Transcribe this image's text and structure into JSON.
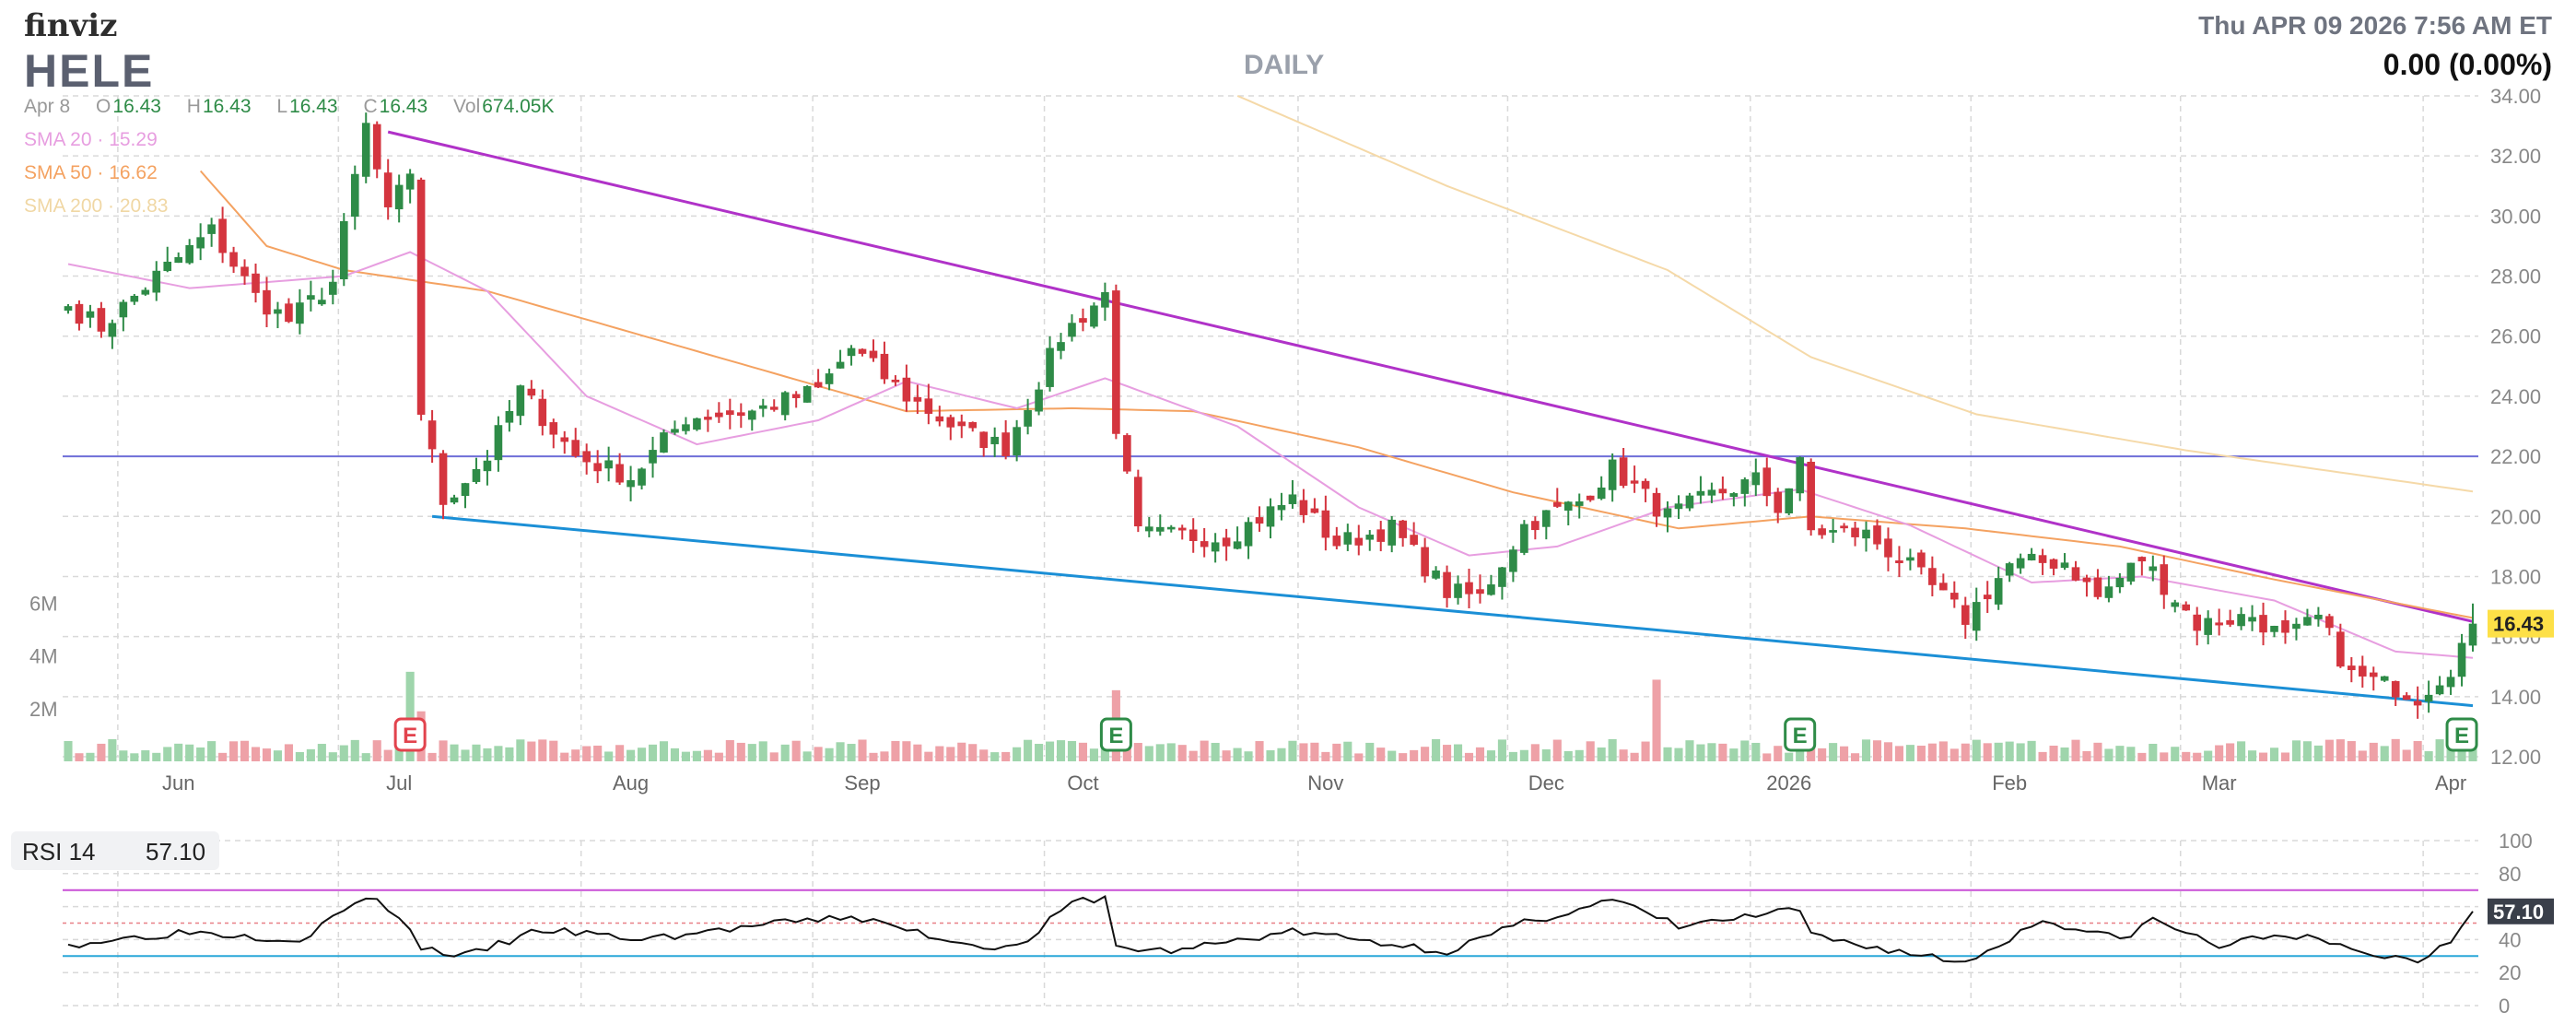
{
  "header": {
    "logo": "finviz",
    "ticker": "HELE",
    "timeframe": "DAILY",
    "datetime": "Thu APR 09 2026 7:56 AM ET",
    "change": "0.00 (0.00%)"
  },
  "ohlc": {
    "date": "Apr 8",
    "open_label": "O",
    "open": "16.43",
    "high_label": "H",
    "high": "16.43",
    "low_label": "L",
    "low": "16.43",
    "close_label": "C",
    "close": "16.43",
    "vol_label": "Vol",
    "vol": "674.05K"
  },
  "legend": {
    "sma20": "SMA 20 · 15.29",
    "sma50": "SMA 50 · 16.62",
    "sma200": "SMA 200 · 20.83"
  },
  "rsi_panel": {
    "label": "RSI 14",
    "value": "57.10"
  },
  "colors": {
    "up": "#2e8b47",
    "down": "#d4353f",
    "vol_up": "#9fd5ac",
    "vol_down": "#eea1a7",
    "sma20": "#e79ee0",
    "sma50": "#f4a261",
    "sma200": "#f5d9a8",
    "upper_trend": "#b032c8",
    "lower_trend": "#1b8fd6",
    "hline": "#6f6fd8",
    "price_badge": "#fde047",
    "earnings": "#2e8b47",
    "earnings_red": "#e2434d"
  },
  "chart_data": [
    {
      "type": "candlestick",
      "title": "HELE",
      "x_axis": {
        "tick_labels": [
          "Jun",
          "Jul",
          "Aug",
          "Sep",
          "Oct",
          "Nov",
          "Dec",
          "2026",
          "Feb",
          "Mar",
          "Apr"
        ],
        "range": [
          "2025-05-23",
          "2026-04-08"
        ]
      },
      "y_axis": {
        "tick_labels": [
          "34.00",
          "32.00",
          "30.00",
          "28.00",
          "26.00",
          "24.00",
          "22.00",
          "20.00",
          "18.00",
          "16.00",
          "14.00",
          "12.00"
        ],
        "ylim": [
          12,
          34
        ],
        "side": "right"
      },
      "last_price_label": "16.43",
      "anchors": [
        {
          "date": "2025-05-23",
          "close": 27.0
        },
        {
          "date": "2025-05-29",
          "close": 26.3
        },
        {
          "date": "2025-06-05",
          "close": 28.0
        },
        {
          "date": "2025-06-12",
          "close": 29.5
        },
        {
          "date": "2025-06-18",
          "close": 27.3
        },
        {
          "date": "2025-06-24",
          "close": 26.5
        },
        {
          "date": "2025-06-30",
          "close": 27.8
        },
        {
          "date": "2025-07-03",
          "close": 33.0
        },
        {
          "date": "2025-07-08",
          "close": 30.0
        },
        {
          "date": "2025-07-10",
          "close": 31.5
        },
        {
          "date": "2025-07-11",
          "close": 23.5
        },
        {
          "date": "2025-07-15",
          "close": 20.5
        },
        {
          "date": "2025-07-21",
          "close": 22.0
        },
        {
          "date": "2025-07-24",
          "close": 24.2
        },
        {
          "date": "2025-07-31",
          "close": 22.0
        },
        {
          "date": "2025-08-07",
          "close": 21.3
        },
        {
          "date": "2025-08-14",
          "close": 23.3
        },
        {
          "date": "2025-08-22",
          "close": 23.5
        },
        {
          "date": "2025-09-02",
          "close": 24.2
        },
        {
          "date": "2025-09-05",
          "close": 25.6
        },
        {
          "date": "2025-09-12",
          "close": 24.0
        },
        {
          "date": "2025-09-19",
          "close": 22.8
        },
        {
          "date": "2025-09-25",
          "close": 22.3
        },
        {
          "date": "2025-10-02",
          "close": 26.0
        },
        {
          "date": "2025-10-08",
          "close": 27.4
        },
        {
          "date": "2025-10-09",
          "close": 23.0
        },
        {
          "date": "2025-10-13",
          "close": 19.4
        },
        {
          "date": "2025-10-23",
          "close": 19.3
        },
        {
          "date": "2025-10-31",
          "close": 20.6
        },
        {
          "date": "2025-11-06",
          "close": 19.1
        },
        {
          "date": "2025-11-13",
          "close": 19.6
        },
        {
          "date": "2025-11-20",
          "close": 17.5
        },
        {
          "date": "2025-11-25",
          "close": 17.3
        },
        {
          "date": "2025-12-02",
          "close": 19.7
        },
        {
          "date": "2025-12-09",
          "close": 20.5
        },
        {
          "date": "2025-12-12",
          "close": 21.6
        },
        {
          "date": "2025-12-19",
          "close": 20.0
        },
        {
          "date": "2025-12-26",
          "close": 20.7
        },
        {
          "date": "2026-01-02",
          "close": 21.2
        },
        {
          "date": "2026-01-06",
          "close": 20.3
        },
        {
          "date": "2026-01-08",
          "close": 21.7
        },
        {
          "date": "2026-01-09",
          "close": 19.5
        },
        {
          "date": "2026-01-16",
          "close": 19.4
        },
        {
          "date": "2026-01-23",
          "close": 18.3
        },
        {
          "date": "2026-01-30",
          "close": 16.6
        },
        {
          "date": "2026-02-05",
          "close": 18.4
        },
        {
          "date": "2026-02-12",
          "close": 18.5
        },
        {
          "date": "2026-02-18",
          "close": 17.3
        },
        {
          "date": "2026-02-24",
          "close": 18.6
        },
        {
          "date": "2026-03-03",
          "close": 16.4
        },
        {
          "date": "2026-03-10",
          "close": 16.7
        },
        {
          "date": "2026-03-13",
          "close": 15.9
        },
        {
          "date": "2026-03-18",
          "close": 16.6
        },
        {
          "date": "2026-03-23",
          "close": 14.7
        },
        {
          "date": "2026-03-27",
          "close": 14.3
        },
        {
          "date": "2026-03-31",
          "close": 14.0
        },
        {
          "date": "2026-04-03",
          "close": 15.0
        },
        {
          "date": "2026-04-08",
          "close": 16.43
        }
      ],
      "sma20_anchors": [
        {
          "date": "2025-05-23",
          "v": 28.4
        },
        {
          "date": "2025-06-10",
          "v": 27.6
        },
        {
          "date": "2025-07-01",
          "v": 28.0
        },
        {
          "date": "2025-07-10",
          "v": 28.8
        },
        {
          "date": "2025-07-21",
          "v": 27.5
        },
        {
          "date": "2025-08-01",
          "v": 24.0
        },
        {
          "date": "2025-08-15",
          "v": 22.4
        },
        {
          "date": "2025-09-01",
          "v": 23.2
        },
        {
          "date": "2025-09-12",
          "v": 24.5
        },
        {
          "date": "2025-09-26",
          "v": 23.6
        },
        {
          "date": "2025-10-08",
          "v": 24.6
        },
        {
          "date": "2025-10-24",
          "v": 23.0
        },
        {
          "date": "2025-11-10",
          "v": 20.3
        },
        {
          "date": "2025-11-24",
          "v": 18.7
        },
        {
          "date": "2025-12-05",
          "v": 19.0
        },
        {
          "date": "2025-12-19",
          "v": 20.3
        },
        {
          "date": "2026-01-08",
          "v": 20.9
        },
        {
          "date": "2026-01-23",
          "v": 19.7
        },
        {
          "date": "2026-02-09",
          "v": 17.8
        },
        {
          "date": "2026-02-24",
          "v": 18.0
        },
        {
          "date": "2026-03-12",
          "v": 17.2
        },
        {
          "date": "2026-03-27",
          "v": 15.5
        },
        {
          "date": "2026-04-08",
          "v": 15.29
        }
      ],
      "sma50_anchors": [
        {
          "date": "2025-06-11",
          "v": 31.5
        },
        {
          "date": "2025-06-20",
          "v": 29.0
        },
        {
          "date": "2025-07-01",
          "v": 28.2
        },
        {
          "date": "2025-07-21",
          "v": 27.5
        },
        {
          "date": "2025-08-15",
          "v": 25.5
        },
        {
          "date": "2025-09-12",
          "v": 23.5
        },
        {
          "date": "2025-10-03",
          "v": 23.6
        },
        {
          "date": "2025-10-20",
          "v": 23.5
        },
        {
          "date": "2025-11-10",
          "v": 22.3
        },
        {
          "date": "2025-12-01",
          "v": 20.8
        },
        {
          "date": "2025-12-22",
          "v": 19.6
        },
        {
          "date": "2026-01-09",
          "v": 20.0
        },
        {
          "date": "2026-01-30",
          "v": 19.6
        },
        {
          "date": "2026-02-20",
          "v": 19.0
        },
        {
          "date": "2026-03-12",
          "v": 17.9
        },
        {
          "date": "2026-04-08",
          "v": 16.62
        }
      ],
      "sma200_anchors": [
        {
          "date": "2025-10-24",
          "v": 34.0
        },
        {
          "date": "2025-11-20",
          "v": 31.0
        },
        {
          "date": "2025-12-19",
          "v": 28.2
        },
        {
          "date": "2026-01-09",
          "v": 25.3
        },
        {
          "date": "2026-02-02",
          "v": 23.4
        },
        {
          "date": "2026-03-02",
          "v": 22.2
        },
        {
          "date": "2026-04-08",
          "v": 20.83
        }
      ],
      "trendlines": [
        {
          "name": "upper",
          "from": {
            "date": "2025-07-08",
            "price": 32.8
          },
          "to": {
            "date": "2026-04-08",
            "price": 16.5
          }
        },
        {
          "name": "lower",
          "from": {
            "date": "2025-07-14",
            "price": 20.0
          },
          "to": {
            "date": "2026-04-08",
            "price": 13.7
          }
        }
      ],
      "horizontal_line": 22.0,
      "earnings_markers": [
        "2025-07-10",
        "2025-10-09",
        "2026-01-08",
        "2026-04-07"
      ],
      "volume_axis_labels": [
        "6M",
        "4M",
        "2M"
      ],
      "volume_ylim": [
        0,
        7000000
      ],
      "volume_spikes": [
        {
          "date": "2025-07-10",
          "v": 3400000
        },
        {
          "date": "2025-07-11",
          "v": 1900000
        },
        {
          "date": "2025-10-09",
          "v": 2700000
        },
        {
          "date": "2025-12-18",
          "v": 3100000
        },
        {
          "date": "2026-01-08",
          "v": 1100000
        },
        {
          "date": "2026-04-07",
          "v": 1400000
        },
        {
          "date": "2026-04-08",
          "v": 674050
        }
      ]
    },
    {
      "type": "line",
      "title": "RSI 14",
      "y_axis": {
        "tick_labels": [
          "100",
          "80",
          "60",
          "40",
          "20",
          "0"
        ],
        "ylim": [
          0,
          100
        ]
      },
      "bands": {
        "overbought": 70,
        "oversold": 30,
        "mid": 50
      },
      "last_value_label": "57.10",
      "anchors": [
        {
          "date": "2025-05-23",
          "v": 37
        },
        {
          "date": "2025-06-10",
          "v": 45
        },
        {
          "date": "2025-06-25",
          "v": 40
        },
        {
          "date": "2025-07-03",
          "v": 66
        },
        {
          "date": "2025-07-09",
          "v": 55
        },
        {
          "date": "2025-07-11",
          "v": 35
        },
        {
          "date": "2025-07-17",
          "v": 30
        },
        {
          "date": "2025-07-28",
          "v": 46
        },
        {
          "date": "2025-08-08",
          "v": 40
        },
        {
          "date": "2025-08-22",
          "v": 48
        },
        {
          "date": "2025-09-05",
          "v": 54
        },
        {
          "date": "2025-09-19",
          "v": 38
        },
        {
          "date": "2025-09-26",
          "v": 35
        },
        {
          "date": "2025-10-03",
          "v": 62
        },
        {
          "date": "2025-10-08",
          "v": 66
        },
        {
          "date": "2025-10-09",
          "v": 35
        },
        {
          "date": "2025-10-16",
          "v": 33
        },
        {
          "date": "2025-10-31",
          "v": 45
        },
        {
          "date": "2025-11-20",
          "v": 33
        },
        {
          "date": "2025-12-02",
          "v": 50
        },
        {
          "date": "2025-12-12",
          "v": 64
        },
        {
          "date": "2025-12-22",
          "v": 48
        },
        {
          "date": "2026-01-08",
          "v": 58
        },
        {
          "date": "2026-01-09",
          "v": 42
        },
        {
          "date": "2026-01-30",
          "v": 26
        },
        {
          "date": "2026-02-10",
          "v": 52
        },
        {
          "date": "2026-02-20",
          "v": 40
        },
        {
          "date": "2026-02-25",
          "v": 52
        },
        {
          "date": "2026-03-05",
          "v": 36
        },
        {
          "date": "2026-03-13",
          "v": 44
        },
        {
          "date": "2026-03-24",
          "v": 32
        },
        {
          "date": "2026-03-31",
          "v": 27
        },
        {
          "date": "2026-04-03",
          "v": 40
        },
        {
          "date": "2026-04-08",
          "v": 57.1
        }
      ]
    }
  ]
}
